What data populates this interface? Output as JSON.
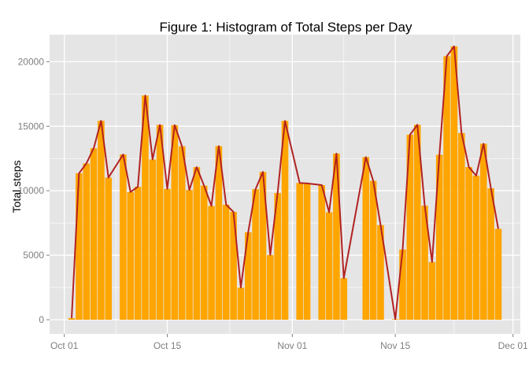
{
  "chart_data": {
    "type": "bar",
    "title": "Figure 1: Histogram of Total Steps per Day",
    "xlabel": "",
    "ylabel": "Total steps",
    "x_date_range": [
      "2012-09-29",
      "2012-12-02"
    ],
    "ylim": [
      -1100,
      22100
    ],
    "grid": true,
    "x_ticks": [
      {
        "date": "2012-10-01",
        "label": "Oct 01"
      },
      {
        "date": "2012-10-15",
        "label": "Oct 15"
      },
      {
        "date": "2012-11-01",
        "label": "Nov 01"
      },
      {
        "date": "2012-11-15",
        "label": "Nov 15"
      },
      {
        "date": "2012-12-01",
        "label": "Dec 01"
      }
    ],
    "y_ticks": [
      {
        "value": 0,
        "label": "0"
      },
      {
        "value": 5000,
        "label": "5000"
      },
      {
        "value": 10000,
        "label": "10000"
      },
      {
        "value": 15000,
        "label": "15000"
      },
      {
        "value": 20000,
        "label": "20000"
      }
    ],
    "bar_color": "#FFA500",
    "line_color": "#B22222",
    "panel_color": "#E5E5E5",
    "grid_color": "#FFFFFF",
    "x": [
      "2012-10-02",
      "2012-10-03",
      "2012-10-04",
      "2012-10-05",
      "2012-10-06",
      "2012-10-07",
      "2012-10-09",
      "2012-10-10",
      "2012-10-11",
      "2012-10-12",
      "2012-10-13",
      "2012-10-14",
      "2012-10-15",
      "2012-10-16",
      "2012-10-17",
      "2012-10-18",
      "2012-10-19",
      "2012-10-20",
      "2012-10-21",
      "2012-10-22",
      "2012-10-23",
      "2012-10-24",
      "2012-10-25",
      "2012-10-26",
      "2012-10-27",
      "2012-10-28",
      "2012-10-29",
      "2012-10-30",
      "2012-10-31",
      "2012-11-02",
      "2012-11-03",
      "2012-11-05",
      "2012-11-06",
      "2012-11-07",
      "2012-11-08",
      "2012-11-11",
      "2012-11-12",
      "2012-11-13",
      "2012-11-15",
      "2012-11-16",
      "2012-11-17",
      "2012-11-18",
      "2012-11-19",
      "2012-11-20",
      "2012-11-21",
      "2012-11-22",
      "2012-11-23",
      "2012-11-24",
      "2012-11-25",
      "2012-11-26",
      "2012-11-27",
      "2012-11-28",
      "2012-11-29"
    ],
    "values": [
      126,
      11352,
      12116,
      13294,
      15420,
      11015,
      12811,
      9900,
      10304,
      17382,
      12426,
      15098,
      10139,
      15084,
      13452,
      10056,
      11829,
      10395,
      8821,
      13460,
      8918,
      8355,
      2492,
      6778,
      10119,
      11458,
      5018,
      9819,
      15414,
      10600,
      10571,
      10439,
      8334,
      12883,
      3219,
      12608,
      10765,
      7336,
      41,
      5441,
      14339,
      15110,
      8841,
      4472,
      12787,
      20427,
      21194,
      14478,
      11834,
      11162,
      13646,
      10183,
      7047
    ]
  }
}
